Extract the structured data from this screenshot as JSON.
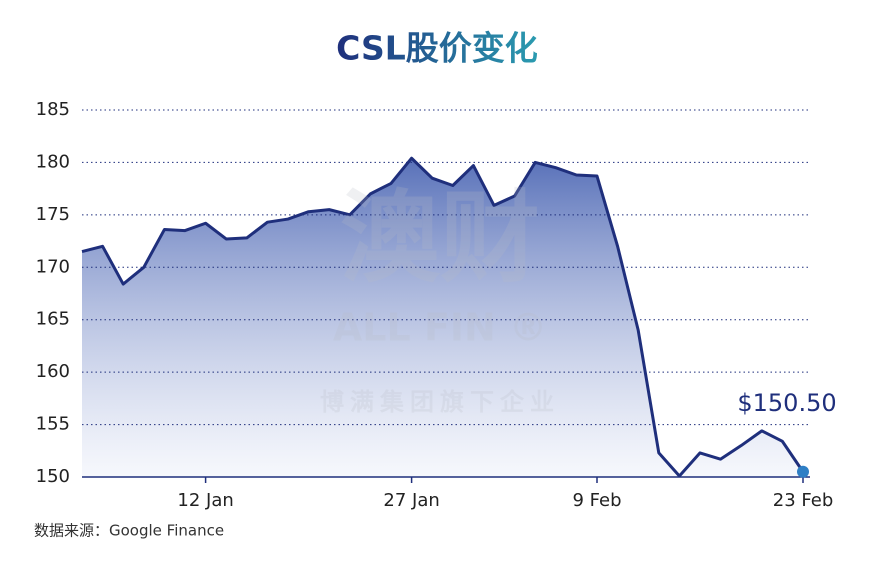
{
  "chart_data": {
    "type": "area",
    "title": "CSL股价变化",
    "categories": [
      null,
      null,
      null,
      null,
      null,
      null,
      "12 Jan",
      null,
      null,
      null,
      null,
      null,
      null,
      null,
      null,
      null,
      "27 Jan",
      null,
      null,
      null,
      null,
      null,
      null,
      null,
      null,
      "9 Feb",
      null,
      null,
      null,
      null,
      null,
      null,
      null,
      null,
      null,
      "23 Feb"
    ],
    "series": [
      {
        "name": "CSL",
        "color": "#1f2f7c",
        "values": [
          171.5,
          172,
          168.4,
          170,
          173.6,
          173.5,
          174.2,
          172.7,
          172.8,
          174.3,
          174.6,
          175.3,
          175.5,
          175,
          177,
          178,
          180.4,
          178.5,
          177.8,
          179.7,
          175.9,
          176.8,
          180,
          179.5,
          178.8,
          178.7,
          172,
          164,
          152.3,
          150.1,
          152.3,
          151.7,
          153,
          154.4,
          153.4,
          150.5
        ],
        "value_labels": [
          null,
          null,
          null,
          null,
          null,
          null,
          null,
          null,
          null,
          null,
          null,
          null,
          null,
          null,
          null,
          null,
          null,
          null,
          null,
          null,
          null,
          null,
          null,
          null,
          null,
          null,
          null,
          null,
          null,
          null,
          null,
          null,
          null,
          null,
          null,
          "$150.50"
        ]
      }
    ],
    "ylim": [
      150,
      185
    ],
    "yticks": [
      150,
      155,
      160,
      165,
      170,
      175,
      180,
      185
    ],
    "grid": true,
    "source": "数据来源：Google Finance",
    "watermark": {
      "logo": "澳财",
      "brand": "ALL FIN ®",
      "tagline": "博满集团旗下企业"
    }
  }
}
